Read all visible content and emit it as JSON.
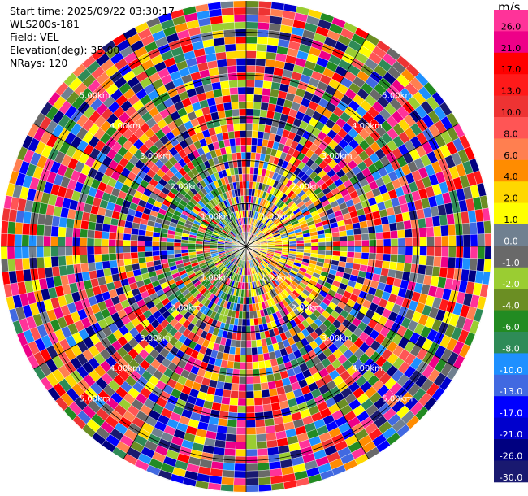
{
  "header": {
    "start_time": "Start time: 2025/09/22 03:30:17",
    "instrument": "WLS200s-181",
    "field": "Field: VEL",
    "elevation": "Elevation(deg): 35.00",
    "nrays": "NRays: 120"
  },
  "chart_data": {
    "type": "heatmap",
    "projection": "polar-ppi",
    "field": "VEL",
    "unit": "m/s",
    "n_rays": 120,
    "elevation_deg": 35.0,
    "range_rings_km": [
      1.0,
      2.0,
      3.0,
      4.0,
      5.0
    ],
    "range_ring_labels": [
      "1.00km",
      "2.00km",
      "3.00km",
      "4.00km",
      "5.00km"
    ],
    "colorbar": {
      "ticks": [
        "26.0",
        "21.0",
        "17.0",
        "13.0",
        "10.0",
        "8.0",
        "6.0",
        "4.0",
        "2.0",
        "1.0",
        "0.0",
        "-1.0",
        "-2.0",
        "-4.0",
        "-6.0",
        "-8.0",
        "-10.0",
        "-13.0",
        "-17.0",
        "-21.0",
        "-26.0",
        "-30.0"
      ],
      "colors": [
        "#ff3399",
        "#ee0088",
        "#ff0000",
        "#ff1a1a",
        "#ee3333",
        "#ff5555",
        "#ff7f50",
        "#ff8c00",
        "#ffd700",
        "#ffff00",
        "#708090",
        "#696969",
        "#9acd32",
        "#6b8e23",
        "#228b22",
        "#2e8b57",
        "#1e90ff",
        "#4169e1",
        "#0000ff",
        "#0000cd",
        "#000080",
        "#191970"
      ]
    }
  }
}
